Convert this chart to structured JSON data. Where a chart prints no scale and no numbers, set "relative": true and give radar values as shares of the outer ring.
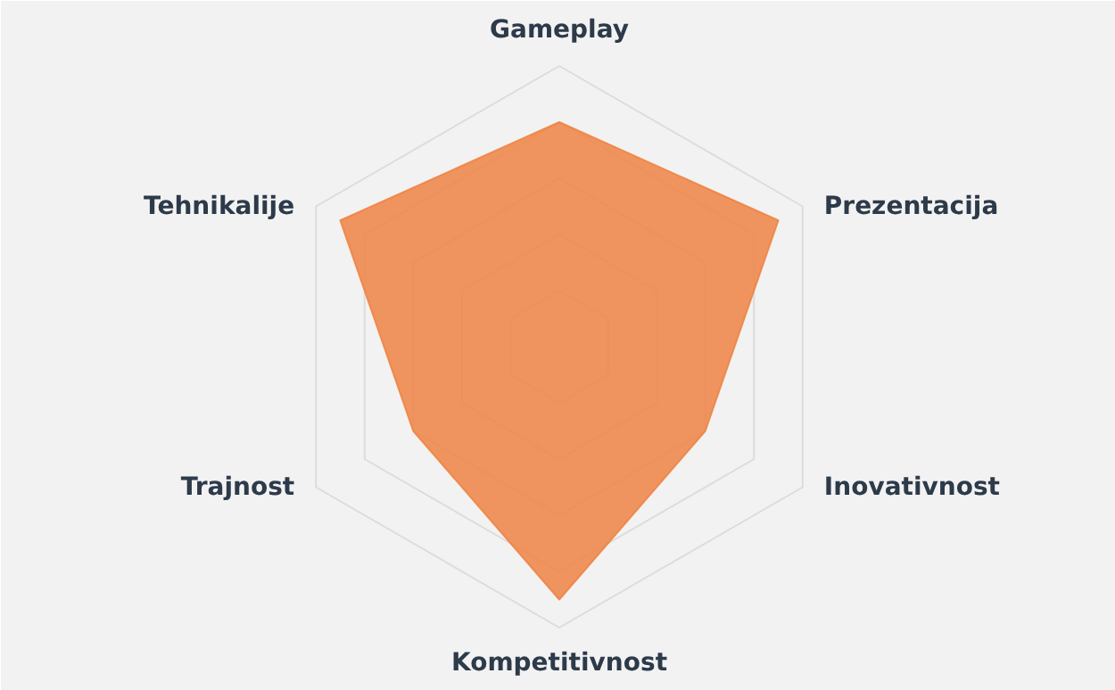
{
  "chart_data": {
    "type": "radar",
    "relative": true,
    "categories": [
      "Gameplay",
      "Prezentacija",
      "Inovativnost",
      "Kompetitivnost",
      "Trajnost",
      "Tehnikalije"
    ],
    "series": [
      {
        "color": "#ef8444",
        "values": [
          0.8,
          0.9,
          0.6,
          0.9,
          0.6,
          0.9
        ]
      }
    ],
    "grid": true
  }
}
